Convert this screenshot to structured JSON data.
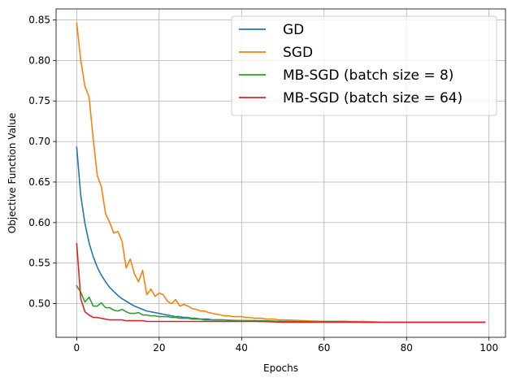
{
  "chart_data": {
    "type": "line",
    "title": "",
    "xlabel": "Epochs",
    "ylabel": "Objective Function Value",
    "xlim": [
      -5,
      104
    ],
    "ylim": [
      0.4585,
      0.8635
    ],
    "xticks": [
      0,
      20,
      40,
      60,
      80,
      100
    ],
    "yticks": [
      0.5,
      0.55,
      0.6,
      0.65,
      0.7,
      0.75,
      0.8,
      0.85
    ],
    "grid": true,
    "legend_position": "top-right",
    "series": [
      {
        "name": "GD",
        "color": "#1f77b4",
        "x": [
          0,
          1,
          2,
          3,
          4,
          5,
          6,
          7,
          8,
          9,
          10,
          11,
          12,
          13,
          14,
          15,
          16,
          17,
          18,
          19,
          20,
          21,
          22,
          23,
          24,
          25,
          26,
          27,
          28,
          29,
          30,
          31,
          32,
          33,
          34,
          35,
          36,
          37,
          38,
          39,
          40,
          41,
          42,
          43,
          44,
          45,
          46,
          47,
          48,
          49,
          50,
          55,
          60,
          65,
          70,
          75,
          80,
          85,
          90,
          95,
          99
        ],
        "y": [
          0.693,
          0.633,
          0.599,
          0.575,
          0.558,
          0.545,
          0.535,
          0.527,
          0.52,
          0.515,
          0.51,
          0.506,
          0.503,
          0.5,
          0.497,
          0.495,
          0.493,
          0.491,
          0.49,
          0.489,
          0.488,
          0.487,
          0.486,
          0.485,
          0.484,
          0.484,
          0.483,
          0.483,
          0.482,
          0.482,
          0.481,
          0.481,
          0.481,
          0.48,
          0.48,
          0.48,
          0.48,
          0.479,
          0.479,
          0.479,
          0.479,
          0.479,
          0.479,
          0.479,
          0.478,
          0.478,
          0.478,
          0.478,
          0.478,
          0.478,
          0.478,
          0.478,
          0.478,
          0.478,
          0.477,
          0.477,
          0.477,
          0.477,
          0.477,
          0.477,
          0.477
        ]
      },
      {
        "name": "SGD",
        "color": "#ff7f0e",
        "x": [
          0,
          1,
          2,
          3,
          4,
          5,
          6,
          7,
          8,
          9,
          10,
          11,
          12,
          13,
          14,
          15,
          16,
          17,
          18,
          19,
          20,
          21,
          22,
          23,
          24,
          25,
          26,
          27,
          28,
          29,
          30,
          31,
          32,
          33,
          34,
          35,
          36,
          37,
          38,
          39,
          40,
          41,
          42,
          43,
          44,
          45,
          46,
          47,
          48,
          49,
          50,
          55,
          60,
          65,
          70,
          75,
          80,
          85,
          90,
          95,
          99
        ],
        "y": [
          0.846,
          0.8,
          0.768,
          0.755,
          0.703,
          0.658,
          0.644,
          0.611,
          0.6,
          0.587,
          0.589,
          0.577,
          0.544,
          0.555,
          0.537,
          0.527,
          0.541,
          0.511,
          0.518,
          0.509,
          0.513,
          0.511,
          0.503,
          0.5,
          0.505,
          0.497,
          0.499,
          0.497,
          0.494,
          0.493,
          0.491,
          0.491,
          0.489,
          0.488,
          0.487,
          0.486,
          0.485,
          0.485,
          0.484,
          0.484,
          0.484,
          0.483,
          0.483,
          0.482,
          0.482,
          0.482,
          0.481,
          0.481,
          0.481,
          0.48,
          0.48,
          0.479,
          0.478,
          0.478,
          0.478,
          0.477,
          0.477,
          0.477,
          0.477,
          0.477,
          0.477
        ]
      },
      {
        "name": "MB-SGD (batch size = 8)",
        "color": "#2ca02c",
        "x": [
          0,
          1,
          2,
          3,
          4,
          5,
          6,
          7,
          8,
          9,
          10,
          11,
          12,
          13,
          14,
          15,
          16,
          17,
          18,
          19,
          20,
          21,
          22,
          23,
          24,
          25,
          26,
          27,
          28,
          29,
          30,
          31,
          32,
          33,
          34,
          35,
          40,
          45,
          50,
          55,
          60,
          65,
          70,
          75,
          80,
          85,
          90,
          95,
          99
        ],
        "y": [
          0.522,
          0.514,
          0.502,
          0.508,
          0.497,
          0.497,
          0.501,
          0.495,
          0.495,
          0.492,
          0.491,
          0.493,
          0.49,
          0.488,
          0.488,
          0.489,
          0.486,
          0.486,
          0.485,
          0.485,
          0.484,
          0.484,
          0.484,
          0.483,
          0.483,
          0.482,
          0.482,
          0.482,
          0.481,
          0.481,
          0.481,
          0.48,
          0.48,
          0.48,
          0.48,
          0.48,
          0.479,
          0.479,
          0.478,
          0.478,
          0.478,
          0.478,
          0.477,
          0.477,
          0.477,
          0.477,
          0.477,
          0.477,
          0.477
        ]
      },
      {
        "name": "MB-SGD (batch size = 64)",
        "color": "#d62728",
        "x": [
          0,
          1,
          2,
          3,
          4,
          5,
          6,
          7,
          8,
          9,
          10,
          11,
          12,
          13,
          14,
          15,
          16,
          17,
          18,
          19,
          20,
          25,
          30,
          35,
          40,
          45,
          50,
          55,
          60,
          65,
          70,
          75,
          80,
          85,
          90,
          95,
          99
        ],
        "y": [
          0.574,
          0.506,
          0.49,
          0.486,
          0.483,
          0.483,
          0.482,
          0.481,
          0.48,
          0.48,
          0.48,
          0.48,
          0.479,
          0.479,
          0.479,
          0.479,
          0.479,
          0.478,
          0.478,
          0.478,
          0.478,
          0.478,
          0.478,
          0.478,
          0.478,
          0.478,
          0.477,
          0.477,
          0.477,
          0.477,
          0.477,
          0.477,
          0.477,
          0.477,
          0.477,
          0.477,
          0.477
        ]
      }
    ]
  }
}
